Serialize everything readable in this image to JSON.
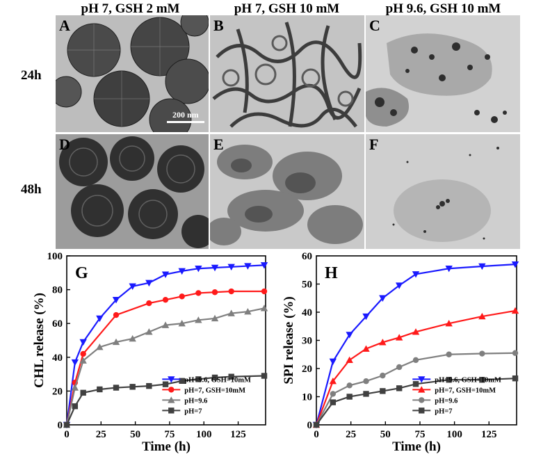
{
  "columns": [
    "pH 7, GSH 2 mM",
    "pH 7, GSH 10 mM",
    "pH 9.6, GSH 10 mM"
  ],
  "rows": [
    "24h",
    "48h"
  ],
  "panels": {
    "A": {
      "letter": "A",
      "scalebar": "200 nm"
    },
    "B": {
      "letter": "B"
    },
    "C": {
      "letter": "C"
    },
    "D": {
      "letter": "D"
    },
    "E": {
      "letter": "E"
    },
    "F": {
      "letter": "F"
    }
  },
  "colors": {
    "blue": "#1a1aff",
    "red": "#ff1a1a",
    "gray": "#7f7f7f",
    "dark": "#404040"
  },
  "chart_data": [
    {
      "panel": "G",
      "type": "line",
      "xlabel": "Time (h)",
      "ylabel": "CHL release (%)",
      "xlim": [
        0,
        145
      ],
      "ylim": [
        0,
        100
      ],
      "xticks": [
        0,
        25,
        50,
        75,
        100,
        125
      ],
      "yticks": [
        0,
        20,
        40,
        60,
        80,
        100
      ],
      "legend_position": "lower-right",
      "series": [
        {
          "name": "pH=9.6,  GSH=10mM",
          "color": "#1a1aff",
          "marker": "triangle-down",
          "x": [
            0,
            6,
            12,
            24,
            36,
            48,
            60,
            72,
            84,
            96,
            108,
            120,
            132,
            144
          ],
          "y": [
            0,
            37,
            49,
            63,
            74,
            82,
            84,
            89,
            91,
            92.5,
            93,
            93.5,
            94,
            94.5
          ]
        },
        {
          "name": "pH=7,  GSH=10mM",
          "color": "#ff1a1a",
          "marker": "circle",
          "x": [
            0,
            6,
            12,
            36,
            60,
            72,
            84,
            96,
            108,
            120,
            144
          ],
          "y": [
            0,
            25,
            42,
            65,
            72,
            74,
            76,
            78,
            78.5,
            79,
            79
          ]
        },
        {
          "name": "pH=9.6",
          "color": "#7f7f7f",
          "marker": "triangle-up",
          "x": [
            0,
            6,
            12,
            24,
            36,
            48,
            60,
            72,
            84,
            96,
            108,
            120,
            132,
            144
          ],
          "y": [
            0,
            22,
            38,
            46,
            49,
            51,
            55,
            59,
            60,
            62,
            63,
            66,
            67,
            69
          ]
        },
        {
          "name": "pH=7",
          "color": "#404040",
          "marker": "square",
          "x": [
            0,
            6,
            12,
            24,
            36,
            48,
            60,
            72,
            84,
            96,
            108,
            120,
            144
          ],
          "y": [
            0,
            11,
            19,
            21,
            22,
            22.5,
            23,
            24,
            26,
            27,
            28,
            28.5,
            29
          ]
        }
      ]
    },
    {
      "panel": "H",
      "type": "line",
      "xlabel": "Time (h)",
      "ylabel": "SPI release (%)",
      "xlim": [
        0,
        145
      ],
      "ylim": [
        0,
        60
      ],
      "xticks": [
        0,
        25,
        50,
        75,
        100,
        125
      ],
      "yticks": [
        0,
        10,
        20,
        30,
        40,
        50,
        60
      ],
      "legend_position": "lower-right",
      "series": [
        {
          "name": "pH=9.6,  GSH=10mM",
          "color": "#1a1aff",
          "marker": "triangle-down",
          "x": [
            0,
            12,
            24,
            36,
            48,
            60,
            72,
            96,
            120,
            144
          ],
          "y": [
            0,
            22.5,
            32,
            38.5,
            45,
            49.5,
            53.5,
            55.5,
            56.3,
            57
          ]
        },
        {
          "name": "pH=7,  GSH=10mM",
          "color": "#ff1a1a",
          "marker": "triangle-up",
          "x": [
            0,
            12,
            24,
            36,
            48,
            60,
            72,
            96,
            120,
            144
          ],
          "y": [
            0,
            15.5,
            23,
            27,
            29.3,
            31,
            33,
            36,
            38.5,
            40.5
          ]
        },
        {
          "name": "pH=9.6",
          "color": "#7f7f7f",
          "marker": "circle",
          "x": [
            0,
            12,
            24,
            36,
            48,
            60,
            72,
            96,
            120,
            144
          ],
          "y": [
            0,
            11,
            14,
            15.5,
            17.5,
            20.5,
            23,
            25,
            25.3,
            25.5
          ]
        },
        {
          "name": "pH=7",
          "color": "#404040",
          "marker": "square",
          "x": [
            0,
            12,
            24,
            36,
            48,
            60,
            72,
            96,
            120,
            144
          ],
          "y": [
            0,
            8,
            10,
            11,
            12,
            13,
            14.5,
            16,
            16,
            16.5
          ]
        }
      ]
    }
  ]
}
